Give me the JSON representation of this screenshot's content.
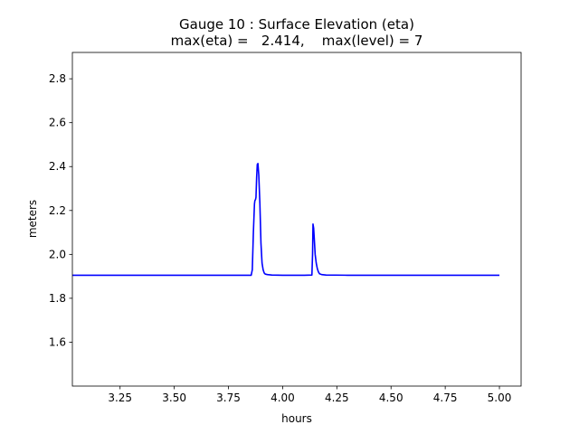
{
  "chart_data": {
    "type": "line",
    "title": "Gauge 10 : Surface Elevation (eta)",
    "subtitle": "max(eta) =   2.414,    max(level) = 7",
    "xlabel": "hours",
    "ylabel": "meters",
    "xlim": [
      3.03,
      5.1
    ],
    "ylim": [
      1.4,
      2.92
    ],
    "xticks": [
      3.25,
      3.5,
      3.75,
      4.0,
      4.25,
      4.5,
      4.75,
      5.0
    ],
    "xtick_labels": [
      "3.25",
      "3.50",
      "3.75",
      "4.00",
      "4.25",
      "4.50",
      "4.75",
      "5.00"
    ],
    "yticks": [
      1.6,
      1.8,
      2.0,
      2.2,
      2.4,
      2.6,
      2.8
    ],
    "ytick_labels": [
      "1.6",
      "1.8",
      "2.0",
      "2.2",
      "2.4",
      "2.6",
      "2.8"
    ],
    "grid": false,
    "series": [
      {
        "color": "#0000ff",
        "x": [
          3.03,
          3.3,
          3.6,
          3.8,
          3.855,
          3.86,
          3.865,
          3.87,
          3.872,
          3.875,
          3.877,
          3.88,
          3.883,
          3.886,
          3.89,
          3.895,
          3.9,
          3.905,
          3.91,
          3.915,
          3.92,
          3.93,
          3.95,
          4.0,
          4.05,
          4.1,
          4.135,
          4.138,
          4.14,
          4.143,
          4.146,
          4.15,
          4.155,
          4.16,
          4.165,
          4.17,
          4.18,
          4.2,
          4.3,
          4.5,
          4.75,
          5.0
        ],
        "y": [
          1.905,
          1.905,
          1.905,
          1.905,
          1.905,
          1.93,
          2.1,
          2.23,
          2.245,
          2.25,
          2.26,
          2.35,
          2.41,
          2.414,
          2.36,
          2.23,
          2.05,
          1.96,
          1.93,
          1.915,
          1.91,
          1.908,
          1.906,
          1.905,
          1.905,
          1.905,
          1.906,
          2.0,
          2.138,
          2.12,
          2.07,
          2.0,
          1.96,
          1.935,
          1.92,
          1.912,
          1.908,
          1.906,
          1.905,
          1.905,
          1.905,
          1.905
        ]
      }
    ]
  }
}
